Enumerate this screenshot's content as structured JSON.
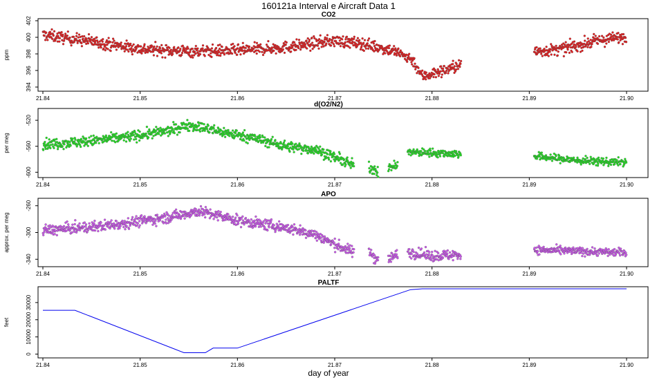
{
  "figure": {
    "title": "160121a   Interval e Aircraft Data 1",
    "xlabel": "day of year"
  },
  "chart_data": [
    {
      "type": "scatter",
      "title": "CO2",
      "ylabel": "ppm",
      "xlim": [
        21.84,
        21.9
      ],
      "ylim": [
        394,
        402
      ],
      "x_ticks": [
        "21.84",
        "21.85",
        "21.86",
        "21.87",
        "21.88",
        "21.89",
        "21.90"
      ],
      "y_ticks": [
        "394",
        "396",
        "398",
        "400",
        "402"
      ],
      "color": "#e31a1c",
      "series": [
        {
          "segments": [
            {
              "x": [
                21.84,
                21.845,
                21.85,
                21.855,
                21.86,
                21.865,
                21.87,
                21.873,
                21.876,
                21.878,
                21.879,
                21.88,
                21.8815,
                21.883
              ],
              "y": [
                400.3,
                399.5,
                398.6,
                398.3,
                398.4,
                398.8,
                399.6,
                399.2,
                398.4,
                397.3,
                395.3,
                395.6,
                396.1,
                396.7
              ],
              "spread": 0.7
            }
          ]
        },
        {
          "segments": [
            {
              "x": [
                21.8905,
                21.893,
                21.895,
                21.897,
                21.9
              ],
              "y": [
                398.3,
                398.5,
                399.0,
                399.6,
                400.1
              ],
              "spread": 0.7
            }
          ]
        }
      ]
    },
    {
      "type": "scatter",
      "title": "d(O2/N2)",
      "ylabel": "per meg",
      "xlim": [
        21.84,
        21.9
      ],
      "ylim": [
        -605,
        -505
      ],
      "x_ticks": [
        "21.84",
        "21.85",
        "21.86",
        "21.87",
        "21.88",
        "21.89",
        "21.90"
      ],
      "y_ticks": [
        "-600",
        "-560",
        "-520"
      ],
      "color": "#1fe01f",
      "series": [
        {
          "segments": [
            {
              "x": [
                21.84,
                21.845,
                21.85,
                21.853,
                21.855,
                21.856,
                21.858,
                21.861,
                21.865,
                21.868,
                21.87,
                21.872
              ],
              "y": [
                -557,
                -552,
                -543,
                -536,
                -527,
                -530,
                -537,
                -545,
                -560,
                -565,
                -577,
                -590
              ],
              "spread": 8
            }
          ]
        },
        {
          "segments": [
            {
              "x": [
                21.8735,
                21.8745
              ],
              "y": [
                -592,
                -597
              ],
              "spread": 10
            },
            {
              "x": [
                21.8755,
                21.8765
              ],
              "y": [
                -594,
                -589
              ],
              "spread": 6
            },
            {
              "x": [
                21.8775,
                21.88,
                21.883
              ],
              "y": [
                -569,
                -570,
                -572
              ],
              "spread": 6
            }
          ]
        },
        {
          "segments": [
            {
              "x": [
                21.8905,
                21.895,
                21.9
              ],
              "y": [
                -575,
                -582,
                -585
              ],
              "spread": 6
            }
          ]
        }
      ]
    },
    {
      "type": "scatter",
      "title": "APO",
      "ylabel": "approx. per meg",
      "xlim": [
        21.84,
        21.9
      ],
      "ylim": [
        -348,
        -252
      ],
      "x_ticks": [
        "21.84",
        "21.85",
        "21.86",
        "21.87",
        "21.88",
        "21.89",
        "21.90"
      ],
      "y_ticks": [
        "-340",
        "-300",
        "-260"
      ],
      "color": "#cc55ee",
      "series": [
        {
          "segments": [
            {
              "x": [
                21.84,
                21.845,
                21.85,
                21.853,
                21.856,
                21.86,
                21.865,
                21.868,
                21.87,
                21.872
              ],
              "y": [
                -297,
                -292,
                -283,
                -277,
                -268,
                -282,
                -293,
                -303,
                -318,
                -330
              ],
              "spread": 8
            }
          ]
        },
        {
          "segments": [
            {
              "x": [
                21.8735,
                21.8745
              ],
              "y": [
                -328,
                -341
              ],
              "spread": 10
            },
            {
              "x": [
                21.8755,
                21.8765
              ],
              "y": [
                -339,
                -333
              ],
              "spread": 8
            },
            {
              "x": [
                21.8775,
                21.88,
                21.883
              ],
              "y": [
                -329,
                -335,
                -333
              ],
              "spread": 8
            }
          ]
        },
        {
          "segments": [
            {
              "x": [
                21.8905,
                21.895,
                21.9
              ],
              "y": [
                -326,
                -328,
                -330
              ],
              "spread": 6
            }
          ]
        }
      ]
    },
    {
      "type": "line",
      "title": "PALTF",
      "ylabel": "feet",
      "xlim": [
        21.84,
        21.9
      ],
      "ylim": [
        -1000,
        38000
      ],
      "x_ticks": [
        "21.84",
        "21.85",
        "21.86",
        "21.87",
        "21.88",
        "21.89",
        "21.90"
      ],
      "y_ticks": [
        "0",
        "10000",
        "20000",
        "30000"
      ],
      "color": "#0000ee",
      "x": [
        21.84,
        21.8433,
        21.8545,
        21.8567,
        21.8575,
        21.86,
        21.8778,
        21.879,
        21.9
      ],
      "y": [
        25500,
        25500,
        800,
        800,
        3500,
        3500,
        37500,
        38000,
        38000
      ]
    }
  ]
}
